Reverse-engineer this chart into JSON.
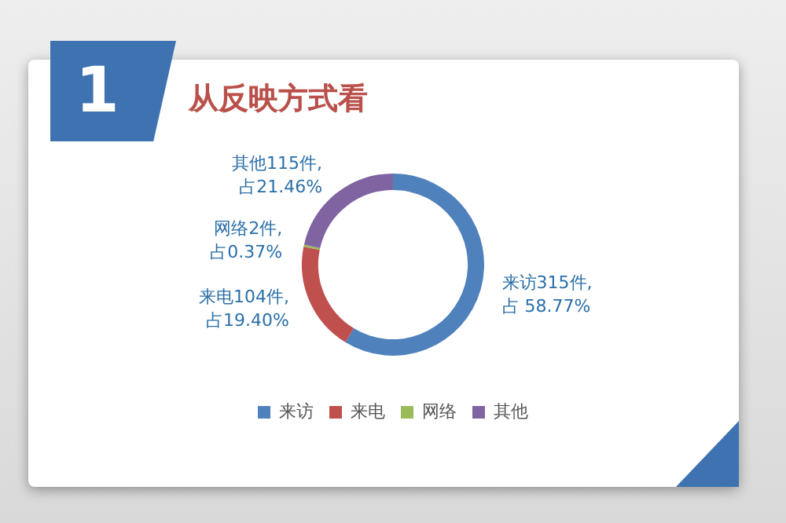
{
  "chart_data": {
    "type": "donut",
    "title": "从反映方式看",
    "annotations": [
      "1"
    ],
    "categories": [
      "来访",
      "来电",
      "网络",
      "其他"
    ],
    "values": [
      315,
      104,
      2,
      115
    ],
    "colors": [
      "#4f81bd",
      "#c0504d",
      "#9bbb59",
      "#8064a2"
    ],
    "value_labels": [
      "来访315件,\n占 58.77%",
      "来电104件,\n占19.40%",
      "网络2件,\n占0.37%",
      "其他115件,\n占21.46%"
    ],
    "legend": "bottom"
  }
}
